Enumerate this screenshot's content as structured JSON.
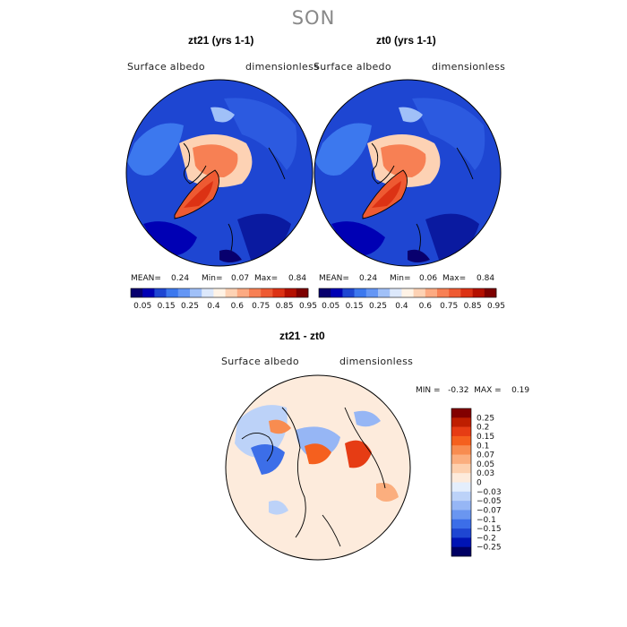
{
  "season": "SON",
  "panels": [
    {
      "title": "zt21 (yrs 1-1)",
      "variable": "Surface albedo",
      "units": "dimensionless",
      "stats": {
        "mean_label": "MEAN=",
        "mean": "0.24",
        "min_label": "Min=",
        "min": "0.07",
        "max_label": "Max=",
        "max": "0.84"
      }
    },
    {
      "title": "zt0 (yrs 1-1)",
      "variable": "Surface albedo",
      "units": "dimensionless",
      "stats": {
        "mean_label": "MEAN=",
        "mean": "0.24",
        "min_label": "Min=",
        "min": "0.06",
        "max_label": "Max=",
        "max": "0.84"
      }
    }
  ],
  "diff": {
    "title": "zt21 - zt0",
    "variable": "Surface albedo",
    "units": "dimensionless",
    "minmax_text": "MIN =   -0.32  MAX =    0.19"
  },
  "chart_data": [
    {
      "type": "heatmap",
      "projection": "north-polar-stereographic",
      "title": "zt21 (yrs 1-1)",
      "variable": "Surface albedo",
      "units": "dimensionless",
      "mean": 0.24,
      "min": 0.07,
      "max": 0.84,
      "colorbar": {
        "levels": [
          0.05,
          0.15,
          0.25,
          0.4,
          0.6,
          0.75,
          0.85,
          0.95
        ],
        "colors": [
          "#08006e",
          "#0000b4",
          "#1e46d2",
          "#3c78ee",
          "#6496f5",
          "#a0c0f8",
          "#dce8fb",
          "#fff3e6",
          "#fdd2b4",
          "#fcaa82",
          "#f78054",
          "#ee5a32",
          "#dc3214",
          "#b41000",
          "#7d0000"
        ]
      }
    },
    {
      "type": "heatmap",
      "projection": "north-polar-stereographic",
      "title": "zt0 (yrs 1-1)",
      "variable": "Surface albedo",
      "units": "dimensionless",
      "mean": 0.24,
      "min": 0.06,
      "max": 0.84,
      "colorbar": {
        "levels": [
          0.05,
          0.15,
          0.25,
          0.4,
          0.6,
          0.75,
          0.85,
          0.95
        ],
        "colors": [
          "#08006e",
          "#0000b4",
          "#1e46d2",
          "#3c78ee",
          "#6496f5",
          "#a0c0f8",
          "#dce8fb",
          "#fff3e6",
          "#fdd2b4",
          "#fcaa82",
          "#f78054",
          "#ee5a32",
          "#dc3214",
          "#b41000",
          "#7d0000"
        ]
      }
    },
    {
      "type": "heatmap",
      "projection": "north-polar-stereographic",
      "title": "zt21 - zt0",
      "variable": "Surface albedo",
      "units": "dimensionless",
      "min": -0.32,
      "max": 0.19,
      "colorbar": {
        "levels": [
          "0.25",
          "0.2",
          "0.15",
          "0.1",
          "0.07",
          "0.05",
          "0.03",
          "0",
          "−0.03",
          "−0.05",
          "−0.07",
          "−0.1",
          "−0.15",
          "−0.2",
          "−0.25"
        ],
        "colors": [
          "#820000",
          "#be1e00",
          "#e63c14",
          "#f5601e",
          "#f88c50",
          "#fbae7e",
          "#fdd0ae",
          "#fdebdc",
          "#e4eefc",
          "#bcd2f8",
          "#96b6f5",
          "#6a96f0",
          "#3c6ee8",
          "#1e46d2",
          "#0014b4",
          "#000064"
        ]
      }
    }
  ]
}
